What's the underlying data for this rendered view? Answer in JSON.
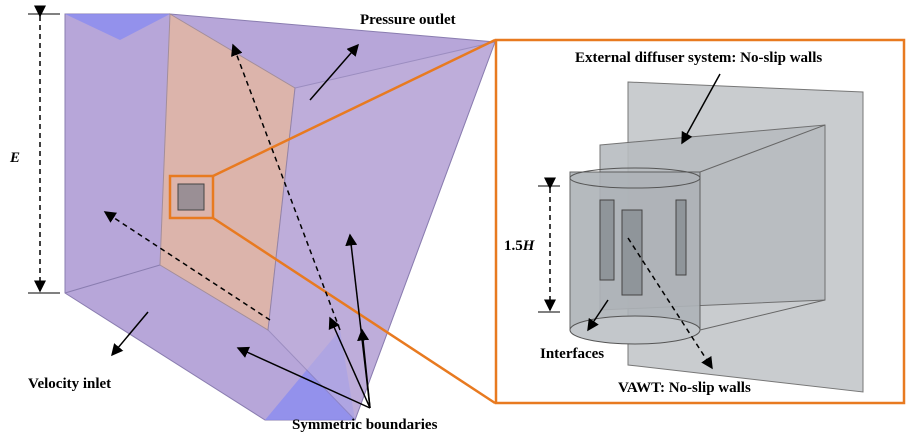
{
  "labels": {
    "pressure_outlet": "Pressure outlet",
    "velocity_inlet": "Velocity inlet",
    "symmetric_boundaries": "Symmetric boundaries",
    "domain_length": "E",
    "diffuser": "External diffuser system: No-slip walls",
    "height": {
      "factor": "1.5",
      "symbol": "H"
    },
    "interfaces": "Interfaces",
    "vawt": "VAWT: No-slip walls"
  }
}
